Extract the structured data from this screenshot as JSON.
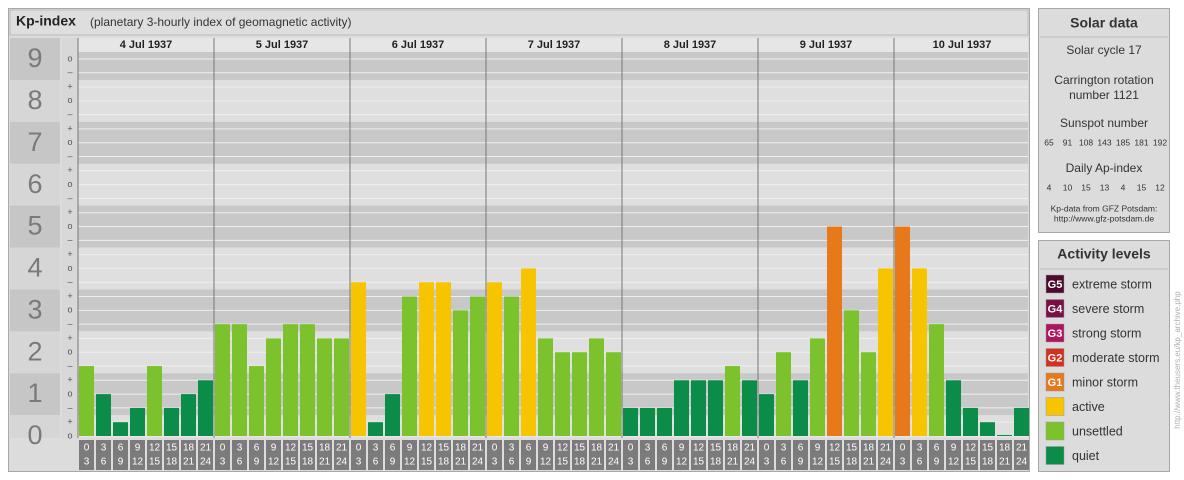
{
  "chart_data": {
    "type": "bar",
    "title": "Kp-index",
    "subtitle": "(planetary 3-hourly index of geomagnetic activity)",
    "days": [
      "4 Jul 1937",
      "5 Jul 1937",
      "6 Jul 1937",
      "7 Jul 1937",
      "8 Jul 1937",
      "9 Jul 1937",
      "10 Jul 1937"
    ],
    "hour_starts": [
      0,
      3,
      6,
      9,
      12,
      15,
      18,
      21
    ],
    "hour_ends": [
      3,
      6,
      9,
      12,
      15,
      18,
      21,
      24
    ],
    "values": [
      1.67,
      1,
      0.33,
      0.67,
      1.67,
      0.67,
      1,
      1.33,
      2.67,
      2.67,
      1.67,
      2.33,
      2.67,
      2.67,
      2.33,
      2.33,
      3.67,
      0.33,
      1,
      3.33,
      3.67,
      3.67,
      3,
      3.33,
      3.67,
      3.33,
      4,
      2.33,
      2,
      2,
      2.33,
      2,
      0.67,
      0.67,
      0.67,
      1.33,
      1.33,
      1.33,
      1.67,
      1.33,
      1,
      2,
      1.33,
      2.33,
      5,
      3,
      2,
      4,
      5,
      4,
      2.67,
      1.33,
      0.67,
      0.33,
      0,
      0.67
    ],
    "colors": [
      "#7cc22c",
      "#0b8c48",
      "#0b8c48",
      "#0b8c48",
      "#7cc22c",
      "#0b8c48",
      "#0b8c48",
      "#0b8c48",
      "#7cc22c",
      "#7cc22c",
      "#7cc22c",
      "#7cc22c",
      "#7cc22c",
      "#7cc22c",
      "#7cc22c",
      "#7cc22c",
      "#f7c400",
      "#0b8c48",
      "#0b8c48",
      "#7cc22c",
      "#f7c400",
      "#f7c400",
      "#7cc22c",
      "#7cc22c",
      "#f7c400",
      "#7cc22c",
      "#f7c400",
      "#7cc22c",
      "#7cc22c",
      "#7cc22c",
      "#7cc22c",
      "#7cc22c",
      "#0b8c48",
      "#0b8c48",
      "#0b8c48",
      "#0b8c48",
      "#0b8c48",
      "#0b8c48",
      "#7cc22c",
      "#0b8c48",
      "#0b8c48",
      "#7cc22c",
      "#0b8c48",
      "#7cc22c",
      "#e8791b",
      "#7cc22c",
      "#7cc22c",
      "#f7c400",
      "#e8791b",
      "#f7c400",
      "#7cc22c",
      "#0b8c48",
      "#0b8c48",
      "#0b8c48",
      "#0b8c48",
      "#0b8c48"
    ],
    "ylim": [
      0,
      9.5
    ],
    "yticks": [
      0,
      1,
      2,
      3,
      4,
      5,
      6,
      7,
      8,
      9
    ],
    "minor_ticks": [
      {
        "value": 0,
        "label": "o"
      },
      {
        "value": 0.33,
        "label": "+"
      },
      {
        "value": 0.67,
        "label": "–"
      },
      {
        "value": 1,
        "label": "o"
      },
      {
        "value": 1.33,
        "label": "+"
      },
      {
        "value": 1.67,
        "label": "–"
      },
      {
        "value": 2,
        "label": "o"
      },
      {
        "value": 2.33,
        "label": "+"
      },
      {
        "value": 2.67,
        "label": "–"
      },
      {
        "value": 3,
        "label": "o"
      },
      {
        "value": 3.33,
        "label": "+"
      },
      {
        "value": 3.67,
        "label": "–"
      },
      {
        "value": 4,
        "label": "o"
      },
      {
        "value": 4.33,
        "label": "+"
      },
      {
        "value": 4.67,
        "label": "–"
      },
      {
        "value": 5,
        "label": "o"
      },
      {
        "value": 5.33,
        "label": "+"
      },
      {
        "value": 5.67,
        "label": "–"
      },
      {
        "value": 6,
        "label": "o"
      },
      {
        "value": 6.33,
        "label": "+"
      },
      {
        "value": 6.67,
        "label": "–"
      },
      {
        "value": 7,
        "label": "o"
      },
      {
        "value": 7.33,
        "label": "+"
      },
      {
        "value": 7.67,
        "label": "–"
      },
      {
        "value": 8,
        "label": "o"
      },
      {
        "value": 8.33,
        "label": "+"
      },
      {
        "value": 8.67,
        "label": "–"
      },
      {
        "value": 9,
        "label": "o"
      }
    ],
    "grid": true
  },
  "solar_data": {
    "title": "Solar data",
    "solar_cycle": "Solar cycle 17",
    "carrington": [
      "Carrington rotation",
      "number 1121"
    ],
    "sunspot_title": "Sunspot number",
    "sunspot_numbers": [
      65,
      91,
      108,
      143,
      185,
      181,
      192
    ],
    "ap_title": "Daily Ap-index",
    "ap_values": [
      4,
      10,
      15,
      13,
      4,
      15,
      12
    ],
    "source": [
      "Kp-data from GFZ Potsdam:",
      "http://www.gfz-potsdam.de"
    ]
  },
  "activity_levels": {
    "title": "Activity levels",
    "items": [
      {
        "code": "G5",
        "label": "extreme storm",
        "color": "#4e0a2c"
      },
      {
        "code": "G4",
        "label": "severe storm",
        "color": "#7a0f45"
      },
      {
        "code": "G3",
        "label": "strong storm",
        "color": "#b0145e"
      },
      {
        "code": "G2",
        "label": "moderate storm",
        "color": "#d3301f"
      },
      {
        "code": "G1",
        "label": "minor storm",
        "color": "#e8791b"
      },
      {
        "label": "active",
        "color": "#f7c400"
      },
      {
        "label": "unsettled",
        "color": "#7cc22c"
      },
      {
        "label": "quiet",
        "color": "#0b8c48"
      }
    ]
  },
  "watermark": "http://www.theusers.eu/kp_archive.php"
}
